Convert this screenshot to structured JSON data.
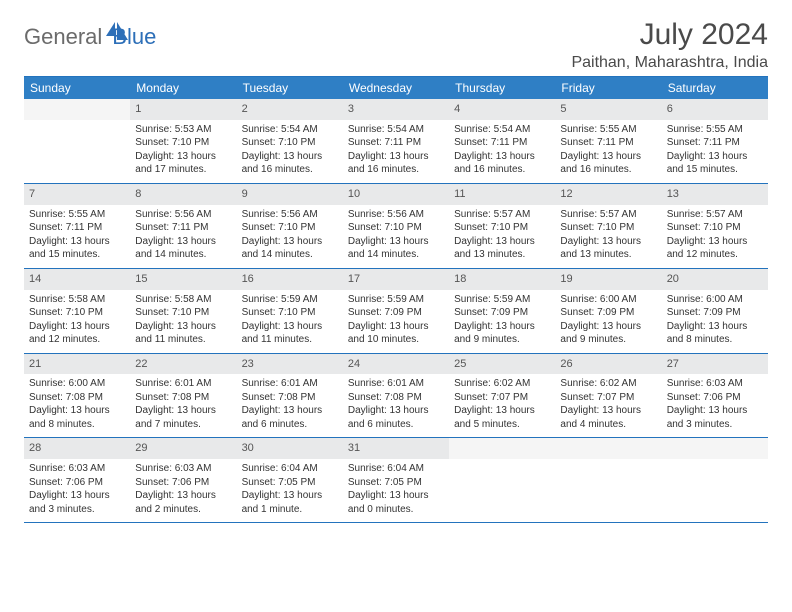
{
  "logo": {
    "part1": "General",
    "part2": "Blue"
  },
  "title": "July 2024",
  "location": "Paithan, Maharashtra, India",
  "weekdays": [
    "Sunday",
    "Monday",
    "Tuesday",
    "Wednesday",
    "Thursday",
    "Friday",
    "Saturday"
  ],
  "colors": {
    "header_bg": "#2f7fc5",
    "header_border": "#2373bd",
    "daynum_bg": "#e8e9ea",
    "text": "#333333",
    "logo_gray": "#6b6b6b",
    "logo_blue": "#2d6fb8"
  },
  "first_weekday_offset": 1,
  "days": [
    {
      "n": 1,
      "sunrise": "5:53 AM",
      "sunset": "7:10 PM",
      "daylight": "13 hours and 17 minutes."
    },
    {
      "n": 2,
      "sunrise": "5:54 AM",
      "sunset": "7:10 PM",
      "daylight": "13 hours and 16 minutes."
    },
    {
      "n": 3,
      "sunrise": "5:54 AM",
      "sunset": "7:11 PM",
      "daylight": "13 hours and 16 minutes."
    },
    {
      "n": 4,
      "sunrise": "5:54 AM",
      "sunset": "7:11 PM",
      "daylight": "13 hours and 16 minutes."
    },
    {
      "n": 5,
      "sunrise": "5:55 AM",
      "sunset": "7:11 PM",
      "daylight": "13 hours and 16 minutes."
    },
    {
      "n": 6,
      "sunrise": "5:55 AM",
      "sunset": "7:11 PM",
      "daylight": "13 hours and 15 minutes."
    },
    {
      "n": 7,
      "sunrise": "5:55 AM",
      "sunset": "7:11 PM",
      "daylight": "13 hours and 15 minutes."
    },
    {
      "n": 8,
      "sunrise": "5:56 AM",
      "sunset": "7:11 PM",
      "daylight": "13 hours and 14 minutes."
    },
    {
      "n": 9,
      "sunrise": "5:56 AM",
      "sunset": "7:10 PM",
      "daylight": "13 hours and 14 minutes."
    },
    {
      "n": 10,
      "sunrise": "5:56 AM",
      "sunset": "7:10 PM",
      "daylight": "13 hours and 14 minutes."
    },
    {
      "n": 11,
      "sunrise": "5:57 AM",
      "sunset": "7:10 PM",
      "daylight": "13 hours and 13 minutes."
    },
    {
      "n": 12,
      "sunrise": "5:57 AM",
      "sunset": "7:10 PM",
      "daylight": "13 hours and 13 minutes."
    },
    {
      "n": 13,
      "sunrise": "5:57 AM",
      "sunset": "7:10 PM",
      "daylight": "13 hours and 12 minutes."
    },
    {
      "n": 14,
      "sunrise": "5:58 AM",
      "sunset": "7:10 PM",
      "daylight": "13 hours and 12 minutes."
    },
    {
      "n": 15,
      "sunrise": "5:58 AM",
      "sunset": "7:10 PM",
      "daylight": "13 hours and 11 minutes."
    },
    {
      "n": 16,
      "sunrise": "5:59 AM",
      "sunset": "7:10 PM",
      "daylight": "13 hours and 11 minutes."
    },
    {
      "n": 17,
      "sunrise": "5:59 AM",
      "sunset": "7:09 PM",
      "daylight": "13 hours and 10 minutes."
    },
    {
      "n": 18,
      "sunrise": "5:59 AM",
      "sunset": "7:09 PM",
      "daylight": "13 hours and 9 minutes."
    },
    {
      "n": 19,
      "sunrise": "6:00 AM",
      "sunset": "7:09 PM",
      "daylight": "13 hours and 9 minutes."
    },
    {
      "n": 20,
      "sunrise": "6:00 AM",
      "sunset": "7:09 PM",
      "daylight": "13 hours and 8 minutes."
    },
    {
      "n": 21,
      "sunrise": "6:00 AM",
      "sunset": "7:08 PM",
      "daylight": "13 hours and 8 minutes."
    },
    {
      "n": 22,
      "sunrise": "6:01 AM",
      "sunset": "7:08 PM",
      "daylight": "13 hours and 7 minutes."
    },
    {
      "n": 23,
      "sunrise": "6:01 AM",
      "sunset": "7:08 PM",
      "daylight": "13 hours and 6 minutes."
    },
    {
      "n": 24,
      "sunrise": "6:01 AM",
      "sunset": "7:08 PM",
      "daylight": "13 hours and 6 minutes."
    },
    {
      "n": 25,
      "sunrise": "6:02 AM",
      "sunset": "7:07 PM",
      "daylight": "13 hours and 5 minutes."
    },
    {
      "n": 26,
      "sunrise": "6:02 AM",
      "sunset": "7:07 PM",
      "daylight": "13 hours and 4 minutes."
    },
    {
      "n": 27,
      "sunrise": "6:03 AM",
      "sunset": "7:06 PM",
      "daylight": "13 hours and 3 minutes."
    },
    {
      "n": 28,
      "sunrise": "6:03 AM",
      "sunset": "7:06 PM",
      "daylight": "13 hours and 3 minutes."
    },
    {
      "n": 29,
      "sunrise": "6:03 AM",
      "sunset": "7:06 PM",
      "daylight": "13 hours and 2 minutes."
    },
    {
      "n": 30,
      "sunrise": "6:04 AM",
      "sunset": "7:05 PM",
      "daylight": "13 hours and 1 minute."
    },
    {
      "n": 31,
      "sunrise": "6:04 AM",
      "sunset": "7:05 PM",
      "daylight": "13 hours and 0 minutes."
    }
  ],
  "labels": {
    "sunrise": "Sunrise:",
    "sunset": "Sunset:",
    "daylight": "Daylight:"
  }
}
